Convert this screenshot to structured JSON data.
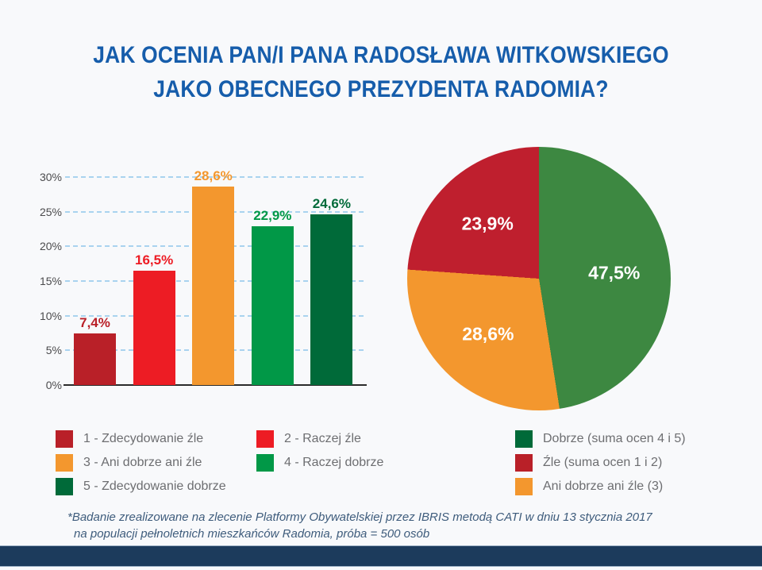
{
  "background": "#f8f9fb",
  "title": {
    "line1": "JAK OCENIA PAN/I PANA RADOSŁAWA WITKOWSKIEGO",
    "line2": "JAKO OBECNEGO PREZYDENTA RADOMIA?",
    "color": "#165dab"
  },
  "chart_data": [
    {
      "type": "bar",
      "categories": [
        "1 - Zdecydowanie źle",
        "2 - Raczej źle",
        "3 - Ani dobrze ani źle",
        "4 - Raczej dobrze",
        "5 - Zdecydowanie dobrze"
      ],
      "values": [
        7.4,
        16.5,
        28.6,
        22.9,
        24.6
      ],
      "value_labels": [
        "7,4%",
        "16,5%",
        "28,6%",
        "22,9%",
        "24,6%"
      ],
      "bar_colors": [
        "#b92028",
        "#ed1c24",
        "#f3972e",
        "#019847",
        "#006a39"
      ],
      "xlabel": "",
      "ylabel": "",
      "ylim": [
        0,
        30
      ],
      "ytick_step": 5,
      "yticks": [
        "0%",
        "5%",
        "10%",
        "15%",
        "20%",
        "25%",
        "30%"
      ],
      "grid": "horizontal dashed",
      "gridline_color": "#a9d3ef",
      "axis_color": "#2b2b2b",
      "tick_color": "#4b4b4d",
      "legend_position": "below"
    },
    {
      "type": "pie",
      "start_angle_deg": 0,
      "direction": "clockwise",
      "slices": [
        {
          "label": "Dobrze (suma ocen 4 i 5)",
          "value": 47.5,
          "display": "47,5%",
          "color": "#3d8841"
        },
        {
          "label": "Ani dobrze ani źle (3)",
          "value": 28.6,
          "display": "28,6%",
          "color": "#f3972e"
        },
        {
          "label": "Źle (suma ocen 1 i 2)",
          "value": 23.9,
          "display": "23,9%",
          "color": "#bf1f2e"
        }
      ],
      "label_color": "#ffffff",
      "legend_position": "below"
    }
  ],
  "legend_left": {
    "items": [
      {
        "label": "1 - Zdecydowanie źle",
        "color": "#b92028"
      },
      {
        "label": "2 - Raczej źle",
        "color": "#ed1c24"
      },
      {
        "label": "3 - Ani dobrze ani źle",
        "color": "#f3972e"
      },
      {
        "label": "4 - Raczej dobrze",
        "color": "#019847"
      },
      {
        "label": "5 - Zdecydowanie dobrze",
        "color": "#006a39"
      }
    ]
  },
  "legend_right": {
    "items": [
      {
        "label": "Dobrze (suma ocen 4 i 5)",
        "color": "#006a39"
      },
      {
        "label": "Źle (suma ocen 1 i 2)",
        "color": "#b92028"
      },
      {
        "label": "Ani dobrze ani źle (3)",
        "color": "#f3972e"
      }
    ]
  },
  "footnote": {
    "line1": "*Badanie zrealizowane na zlecenie Platformy Obywatelskiej przez IBRIS metodą CATI w dniu 13 stycznia 2017",
    "line2": "na populacji pełnoletnich mieszkańców Radomia, próba = 500 osób",
    "color": "#3e5c7c"
  },
  "footer_bar": {
    "color": "#1c3b5c",
    "edge_color": "#9db1c5"
  }
}
